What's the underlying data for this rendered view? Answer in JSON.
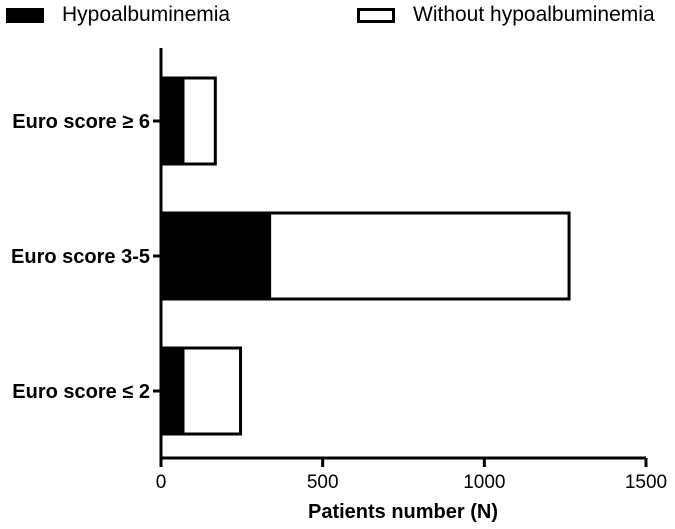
{
  "chart_data": {
    "type": "bar",
    "orientation": "horizontal",
    "stacked": true,
    "categories": [
      "Euro score ≥ 6",
      "Euro score 3-5",
      "Euro score ≤ 2"
    ],
    "series": [
      {
        "name": "Hypoalbuminemia",
        "values": [
          68,
          336,
          68
        ],
        "color": "#000000"
      },
      {
        "name": "Without hypoalbuminemia",
        "values": [
          100,
          926,
          178
        ],
        "color": "#ffffff"
      }
    ],
    "xlabel": "Patients number (N)",
    "ylabel": "",
    "xlim": [
      0,
      1500
    ],
    "xticks": [
      "0",
      "500",
      "1000",
      "1500"
    ],
    "grid": false,
    "legend_position": "top"
  }
}
